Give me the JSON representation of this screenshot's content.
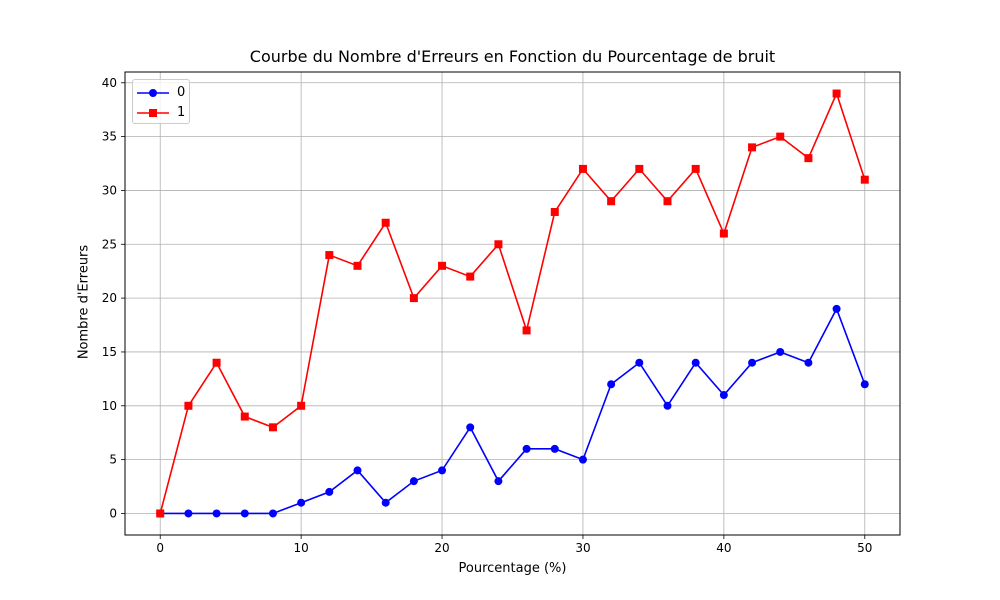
{
  "chart_data": {
    "type": "line",
    "title": "Courbe du Nombre d'Erreurs en Fonction du Pourcentage de bruit",
    "xlabel": "Pourcentage (%)",
    "ylabel": "Nombre d'Erreurs",
    "xlim": [
      -2.5,
      52.5
    ],
    "ylim": [
      -2,
      41
    ],
    "xticks": [
      0,
      10,
      20,
      30,
      40,
      50
    ],
    "yticks": [
      0,
      5,
      10,
      15,
      20,
      25,
      30,
      35,
      40
    ],
    "grid": true,
    "legend_position": "top-left",
    "x": [
      0,
      2,
      4,
      6,
      8,
      10,
      12,
      14,
      16,
      18,
      20,
      22,
      24,
      26,
      28,
      30,
      32,
      34,
      36,
      38,
      40,
      42,
      44,
      46,
      48,
      50
    ],
    "series": [
      {
        "name": "0",
        "color": "#0000ff",
        "marker": "circle",
        "values": [
          0,
          0,
          0,
          0,
          0,
          1,
          2,
          4,
          1,
          3,
          4,
          8,
          3,
          6,
          6,
          5,
          12,
          14,
          10,
          14,
          11,
          14,
          15,
          14,
          19,
          12
        ]
      },
      {
        "name": "1",
        "color": "#ff0000",
        "marker": "square",
        "values": [
          0,
          10,
          14,
          9,
          8,
          10,
          24,
          23,
          27,
          20,
          23,
          22,
          25,
          17,
          28,
          32,
          29,
          32,
          29,
          32,
          26,
          34,
          35,
          33,
          39,
          31
        ]
      }
    ]
  }
}
